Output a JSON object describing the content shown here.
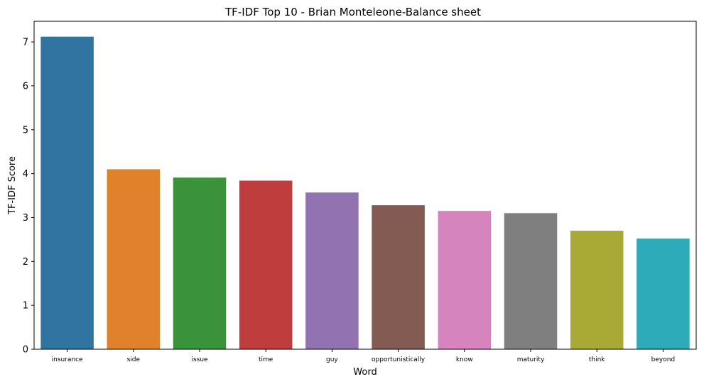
{
  "chart_data": {
    "type": "bar",
    "title": "TF-IDF Top 10 - Brian Monteleone-Balance sheet",
    "xlabel": "Word",
    "ylabel": "TF-IDF Score",
    "categories": [
      "insurance",
      "side",
      "issue",
      "time",
      "guy",
      "opportunistically",
      "know",
      "maturity",
      "think",
      "beyond"
    ],
    "values": [
      7.12,
      4.1,
      3.91,
      3.84,
      3.57,
      3.28,
      3.15,
      3.1,
      2.7,
      2.52
    ],
    "colors": [
      "#3274a1",
      "#e1812c",
      "#3a923a",
      "#c03d3e",
      "#9372b2",
      "#845b53",
      "#d684bd",
      "#7f7f7f",
      "#a9aa35",
      "#2eabb8"
    ],
    "ylim": [
      0,
      7.47
    ],
    "yticks": [
      0,
      1,
      2,
      3,
      4,
      5,
      6,
      7
    ],
    "grid": false,
    "legend": "none"
  }
}
